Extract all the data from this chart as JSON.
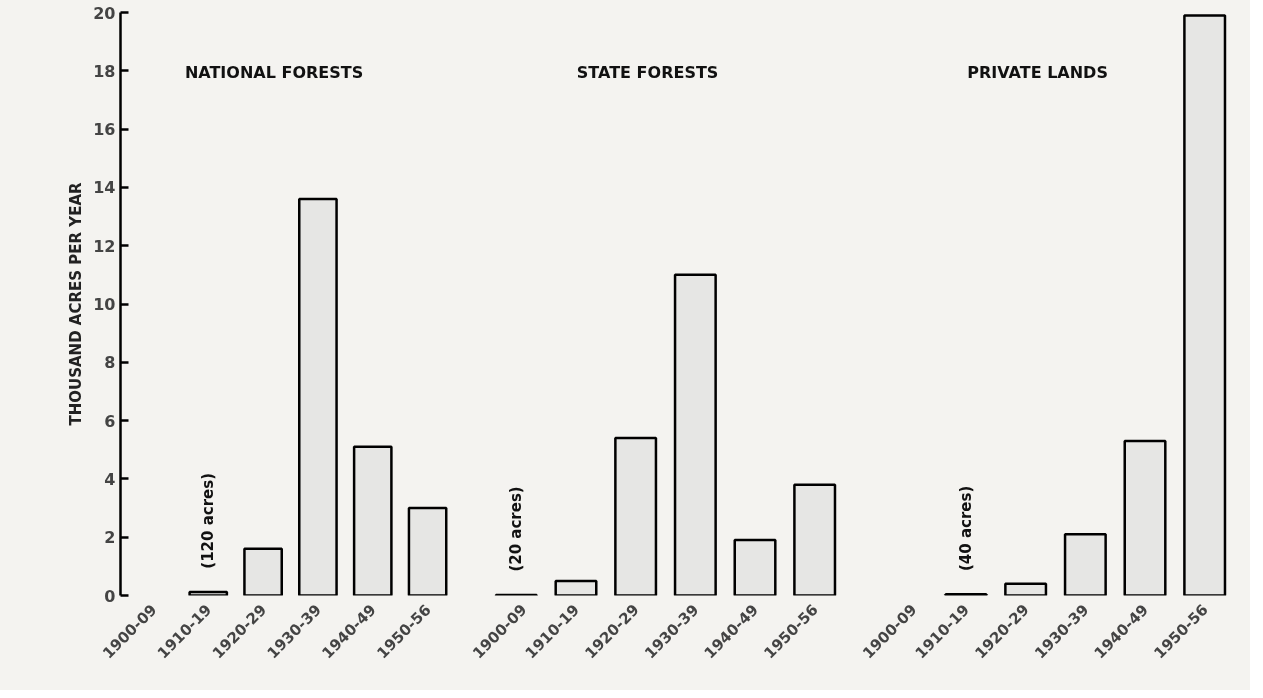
{
  "chart_data": [
    {
      "type": "bar",
      "title": "NATIONAL FORESTS",
      "ylabel": "THOUSAND ACRES PER YEAR",
      "categories": [
        "1900-09",
        "1910-19",
        "1920-29",
        "1930-39",
        "1940-49",
        "1950-56"
      ],
      "values": [
        null,
        0.12,
        1.6,
        13.6,
        5.1,
        3.0
      ],
      "color": "#e6e6e4",
      "ylim": [
        0,
        20
      ],
      "yticks": [
        0,
        2,
        4,
        6,
        8,
        10,
        12,
        14,
        16,
        18,
        20
      ],
      "grid": false,
      "annotations": [
        {
          "text": "(120 acres)",
          "x": "1910-19",
          "y": 0.12
        }
      ]
    },
    {
      "type": "bar",
      "title": "STATE FORESTS",
      "categories": [
        "1900-09",
        "1910-19",
        "1920-29",
        "1930-39",
        "1940-49",
        "1950-56"
      ],
      "values": [
        0.02,
        0.5,
        5.4,
        11.0,
        1.9,
        3.8
      ],
      "color": "#e6e6e4",
      "ylim": [
        0,
        20
      ],
      "tick_labels": "x",
      "grid": false,
      "annotations": [
        {
          "text": "(20 acres)",
          "x": "1900-09",
          "y": 0.02
        }
      ]
    },
    {
      "type": "bar",
      "title": "PRIVATE LANDS",
      "categories": [
        "1900-09",
        "1910-19",
        "1920-29",
        "1930-39",
        "1940-49",
        "1950-56"
      ],
      "values": [
        null,
        0.04,
        0.4,
        2.1,
        5.3,
        19.9
      ],
      "color": "#e6e6e4",
      "ylim": [
        0,
        20
      ],
      "tick_labels": "x",
      "grid": false,
      "annotations": [
        {
          "text": "(40 acres)",
          "x": "1910-19",
          "y": 0.04
        }
      ]
    }
  ]
}
